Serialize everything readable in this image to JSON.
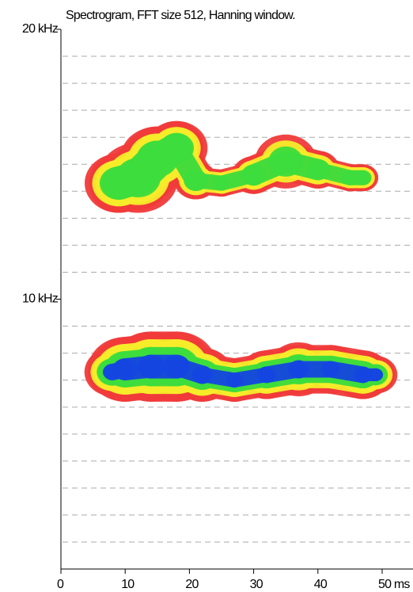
{
  "chart_data": {
    "type": "spectrogram",
    "title": "Spectrogram, FFT size 512, Hanning window.",
    "xlim": [
      0,
      55
    ],
    "ylim": [
      0,
      20
    ],
    "xticks": [
      0,
      10,
      20,
      30,
      40,
      {
        "value": 50,
        "label": "50 ms"
      }
    ],
    "yticks": [
      {
        "value": 10,
        "label": "10 kHz"
      },
      {
        "value": 20,
        "label": "20 kHz"
      }
    ],
    "ygrid": [
      1,
      2,
      3,
      4,
      5,
      6,
      7,
      8,
      9,
      11,
      12,
      13,
      14,
      15,
      16,
      17,
      18,
      19
    ],
    "tracks": [
      {
        "x": [
          9,
          12,
          15,
          18,
          21,
          25,
          30,
          35,
          40,
          45,
          47
        ],
        "values": [
          14.3,
          14.5,
          15.2,
          15.6,
          14.4,
          14.3,
          14.6,
          15.1,
          14.8,
          14.5,
          14.5
        ],
        "spread": [
          1.1,
          1.3,
          1.2,
          1.0,
          0.7,
          0.5,
          0.7,
          1.0,
          0.7,
          0.5,
          0.5
        ],
        "colors": [
          "#f03a3a",
          "#f6ec2a",
          "#3cdc3c"
        ]
      },
      {
        "x": [
          8,
          10,
          14,
          18,
          22,
          27,
          32,
          37,
          42,
          47,
          49
        ],
        "values": [
          7.3,
          7.4,
          7.5,
          7.5,
          7.2,
          7.0,
          7.2,
          7.4,
          7.4,
          7.2,
          7.2
        ],
        "spread": [
          0.9,
          1.2,
          1.3,
          1.3,
          1.0,
          0.8,
          0.9,
          1.0,
          0.9,
          0.9,
          0.7
        ],
        "colors": [
          "#f03a3a",
          "#f6ec2a",
          "#3cdc3c",
          "#1446e0"
        ]
      }
    ]
  }
}
